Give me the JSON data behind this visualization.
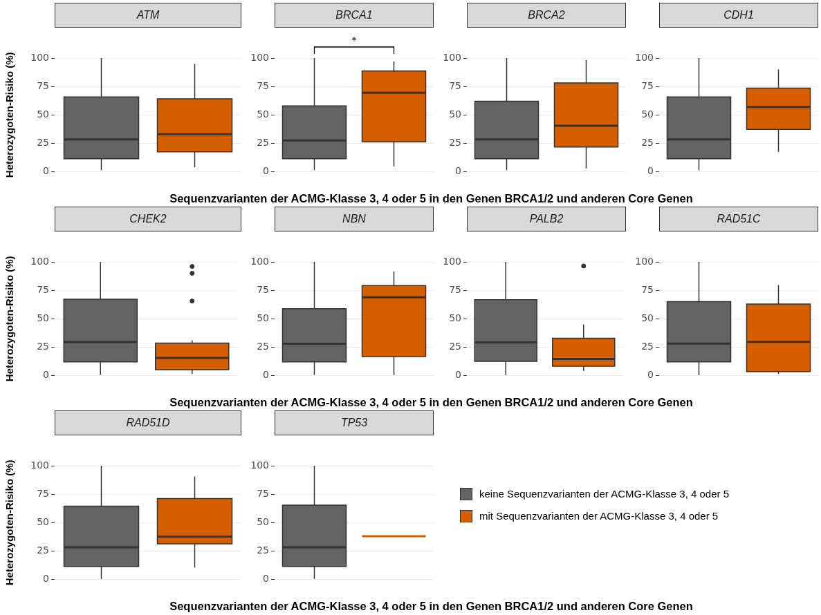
{
  "chart_data": [
    {
      "type": "box",
      "title": "ATM",
      "ylabel": "Heterozygoten-Risiko (%)",
      "xlabel": "Sequenzvarianten der ACMG-Klasse 3, 4 oder 5 in den Genen BRCA1/2 und anderen Core Genen",
      "categories": [
        null,
        null
      ],
      "ylim": [
        0,
        100
      ],
      "yticks": [
        0,
        25,
        50,
        75,
        100
      ],
      "grid": "y",
      "series": [
        {
          "color": "#636363",
          "boxes": [
            {
              "low": 1.5,
              "q1": 11.4,
              "median": 28.5,
              "q3": 65.8,
              "high": 100
            },
            null
          ]
        },
        {
          "color": "#d55e00",
          "boxes": [
            null,
            {
              "low": 4,
              "q1": 17.6,
              "median": 33,
              "q3": 64.2,
              "high": 94.8
            }
          ]
        }
      ]
    },
    {
      "type": "box",
      "title": "BRCA1",
      "categories": [
        null,
        null
      ],
      "ylim": [
        0,
        100
      ],
      "yticks": [
        0,
        25,
        50,
        75,
        100
      ],
      "grid": "y",
      "annotations": [
        "*"
      ],
      "series": [
        {
          "color": "#636363",
          "boxes": [
            {
              "low": 1.5,
              "q1": 11.4,
              "median": 27.5,
              "q3": 58,
              "high": 100
            },
            null
          ]
        },
        {
          "color": "#d55e00",
          "boxes": [
            null,
            {
              "low": 4.7,
              "q1": 26.4,
              "median": 69.4,
              "q3": 88.6,
              "high": 97
            }
          ]
        }
      ]
    },
    {
      "type": "box",
      "title": "BRCA2",
      "categories": [
        null,
        null
      ],
      "ylim": [
        0,
        100
      ],
      "yticks": [
        0,
        25,
        50,
        75,
        100
      ],
      "grid": "y",
      "series": [
        {
          "color": "#636363",
          "boxes": [
            {
              "low": 1.5,
              "q1": 11.4,
              "median": 28.5,
              "q3": 62,
              "high": 100
            },
            null
          ]
        },
        {
          "color": "#d55e00",
          "boxes": [
            null,
            {
              "low": 3,
              "q1": 21.8,
              "median": 40.4,
              "q3": 78.2,
              "high": 98.4
            }
          ]
        }
      ]
    },
    {
      "type": "box",
      "title": "CDH1",
      "categories": [
        null,
        null
      ],
      "ylim": [
        0,
        100
      ],
      "yticks": [
        0,
        25,
        50,
        75,
        100
      ],
      "grid": "y",
      "series": [
        {
          "color": "#636363",
          "boxes": [
            {
              "low": 1.5,
              "q1": 11.4,
              "median": 28.5,
              "q3": 65.8,
              "high": 100
            },
            null
          ]
        },
        {
          "color": "#d55e00",
          "boxes": [
            null,
            {
              "low": 17.6,
              "q1": 37.3,
              "median": 57,
              "q3": 73.6,
              "high": 90
            }
          ]
        }
      ]
    },
    {
      "type": "box",
      "title": "CHEK2",
      "ylabel": "Heterozygoten-Risiko (%)",
      "xlabel": "Sequenzvarianten der ACMG-Klasse 3, 4 oder 5 in den Genen BRCA1/2 und anderen Core Genen",
      "categories": [
        null,
        null
      ],
      "ylim": [
        0,
        100
      ],
      "yticks": [
        0,
        25,
        50,
        75,
        100
      ],
      "grid": "y",
      "series": [
        {
          "color": "#636363",
          "boxes": [
            {
              "low": 0.5,
              "q1": 12,
              "median": 29.5,
              "q3": 67.2,
              "high": 100
            },
            null
          ]
        },
        {
          "color": "#d55e00",
          "boxes": [
            null,
            {
              "low": 1.6,
              "q1": 5.2,
              "median": 15.6,
              "q3": 28.6,
              "high": 31,
              "outliers": [
                96,
                90,
                65.6
              ]
            }
          ]
        }
      ]
    },
    {
      "type": "box",
      "title": "NBN",
      "categories": [
        null,
        null
      ],
      "ylim": [
        0,
        100
      ],
      "yticks": [
        0,
        25,
        50,
        75,
        100
      ],
      "grid": "y",
      "series": [
        {
          "color": "#636363",
          "boxes": [
            {
              "low": 0.5,
              "q1": 12,
              "median": 28,
              "q3": 58.9,
              "high": 100
            },
            null
          ]
        },
        {
          "color": "#d55e00",
          "boxes": [
            null,
            {
              "low": 0.5,
              "q1": 16.7,
              "median": 68.8,
              "q3": 79.2,
              "high": 91.7
            }
          ]
        }
      ]
    },
    {
      "type": "box",
      "title": "PALB2",
      "categories": [
        null,
        null
      ],
      "ylim": [
        0,
        100
      ],
      "yticks": [
        0,
        25,
        50,
        75,
        100
      ],
      "grid": "y",
      "series": [
        {
          "color": "#636363",
          "boxes": [
            {
              "low": 0.5,
              "q1": 12.5,
              "median": 29.2,
              "q3": 66.7,
              "high": 100
            },
            null
          ]
        },
        {
          "color": "#d55e00",
          "boxes": [
            null,
            {
              "low": 4.2,
              "q1": 8.3,
              "median": 14.6,
              "q3": 32.8,
              "high": 44.8,
              "outliers": [
                96.4
              ]
            }
          ]
        }
      ]
    },
    {
      "type": "box",
      "title": "RAD51C",
      "categories": [
        null,
        null
      ],
      "ylim": [
        0,
        100
      ],
      "yticks": [
        0,
        25,
        50,
        75,
        100
      ],
      "grid": "y",
      "series": [
        {
          "color": "#636363",
          "boxes": [
            {
              "low": 0.5,
              "q1": 12,
              "median": 28.1,
              "q3": 65.1,
              "high": 100
            },
            null
          ]
        },
        {
          "color": "#d55e00",
          "boxes": [
            null,
            {
              "low": 1.6,
              "q1": 3.6,
              "median": 29.7,
              "q3": 63,
              "high": 79.7
            }
          ]
        }
      ]
    },
    {
      "type": "box",
      "title": "RAD51D",
      "ylabel": "Heterozygoten-Risiko (%)",
      "xlabel": "Sequenzvarianten der ACMG-Klasse 3, 4 oder 5 in den Genen BRCA1/2 und anderen Core Genen",
      "categories": [
        null,
        null
      ],
      "ylim": [
        0,
        100
      ],
      "yticks": [
        0,
        25,
        50,
        75,
        100
      ],
      "grid": "y",
      "series": [
        {
          "color": "#636363",
          "boxes": [
            {
              "low": 0.5,
              "q1": 11.5,
              "median": 28.3,
              "q3": 64.4,
              "high": 100
            },
            null
          ]
        },
        {
          "color": "#d55e00",
          "boxes": [
            null,
            {
              "low": 10.5,
              "q1": 31.4,
              "median": 37.7,
              "q3": 71.2,
              "high": 90.6
            }
          ]
        }
      ]
    },
    {
      "type": "box",
      "title": "TP53",
      "categories": [
        null,
        null
      ],
      "ylim": [
        0,
        100
      ],
      "yticks": [
        0,
        25,
        50,
        75,
        100
      ],
      "grid": "y",
      "legend": "right",
      "series": [
        {
          "name": "keine Sequenzvarianten der ACMG-Klasse 3, 4 oder 5",
          "color": "#636363",
          "boxes": [
            {
              "low": 0.5,
              "q1": 11.5,
              "median": 28.3,
              "q3": 65.4,
              "high": 100
            },
            null
          ]
        },
        {
          "name": "mit Sequenzvarianten der ACMG-Klasse 3, 4 oder 5",
          "color": "#d55e00",
          "boxes": [
            null,
            {
              "low": 38,
              "q1": 38,
              "median": 38,
              "q3": 38,
              "high": 38
            }
          ]
        }
      ]
    }
  ]
}
